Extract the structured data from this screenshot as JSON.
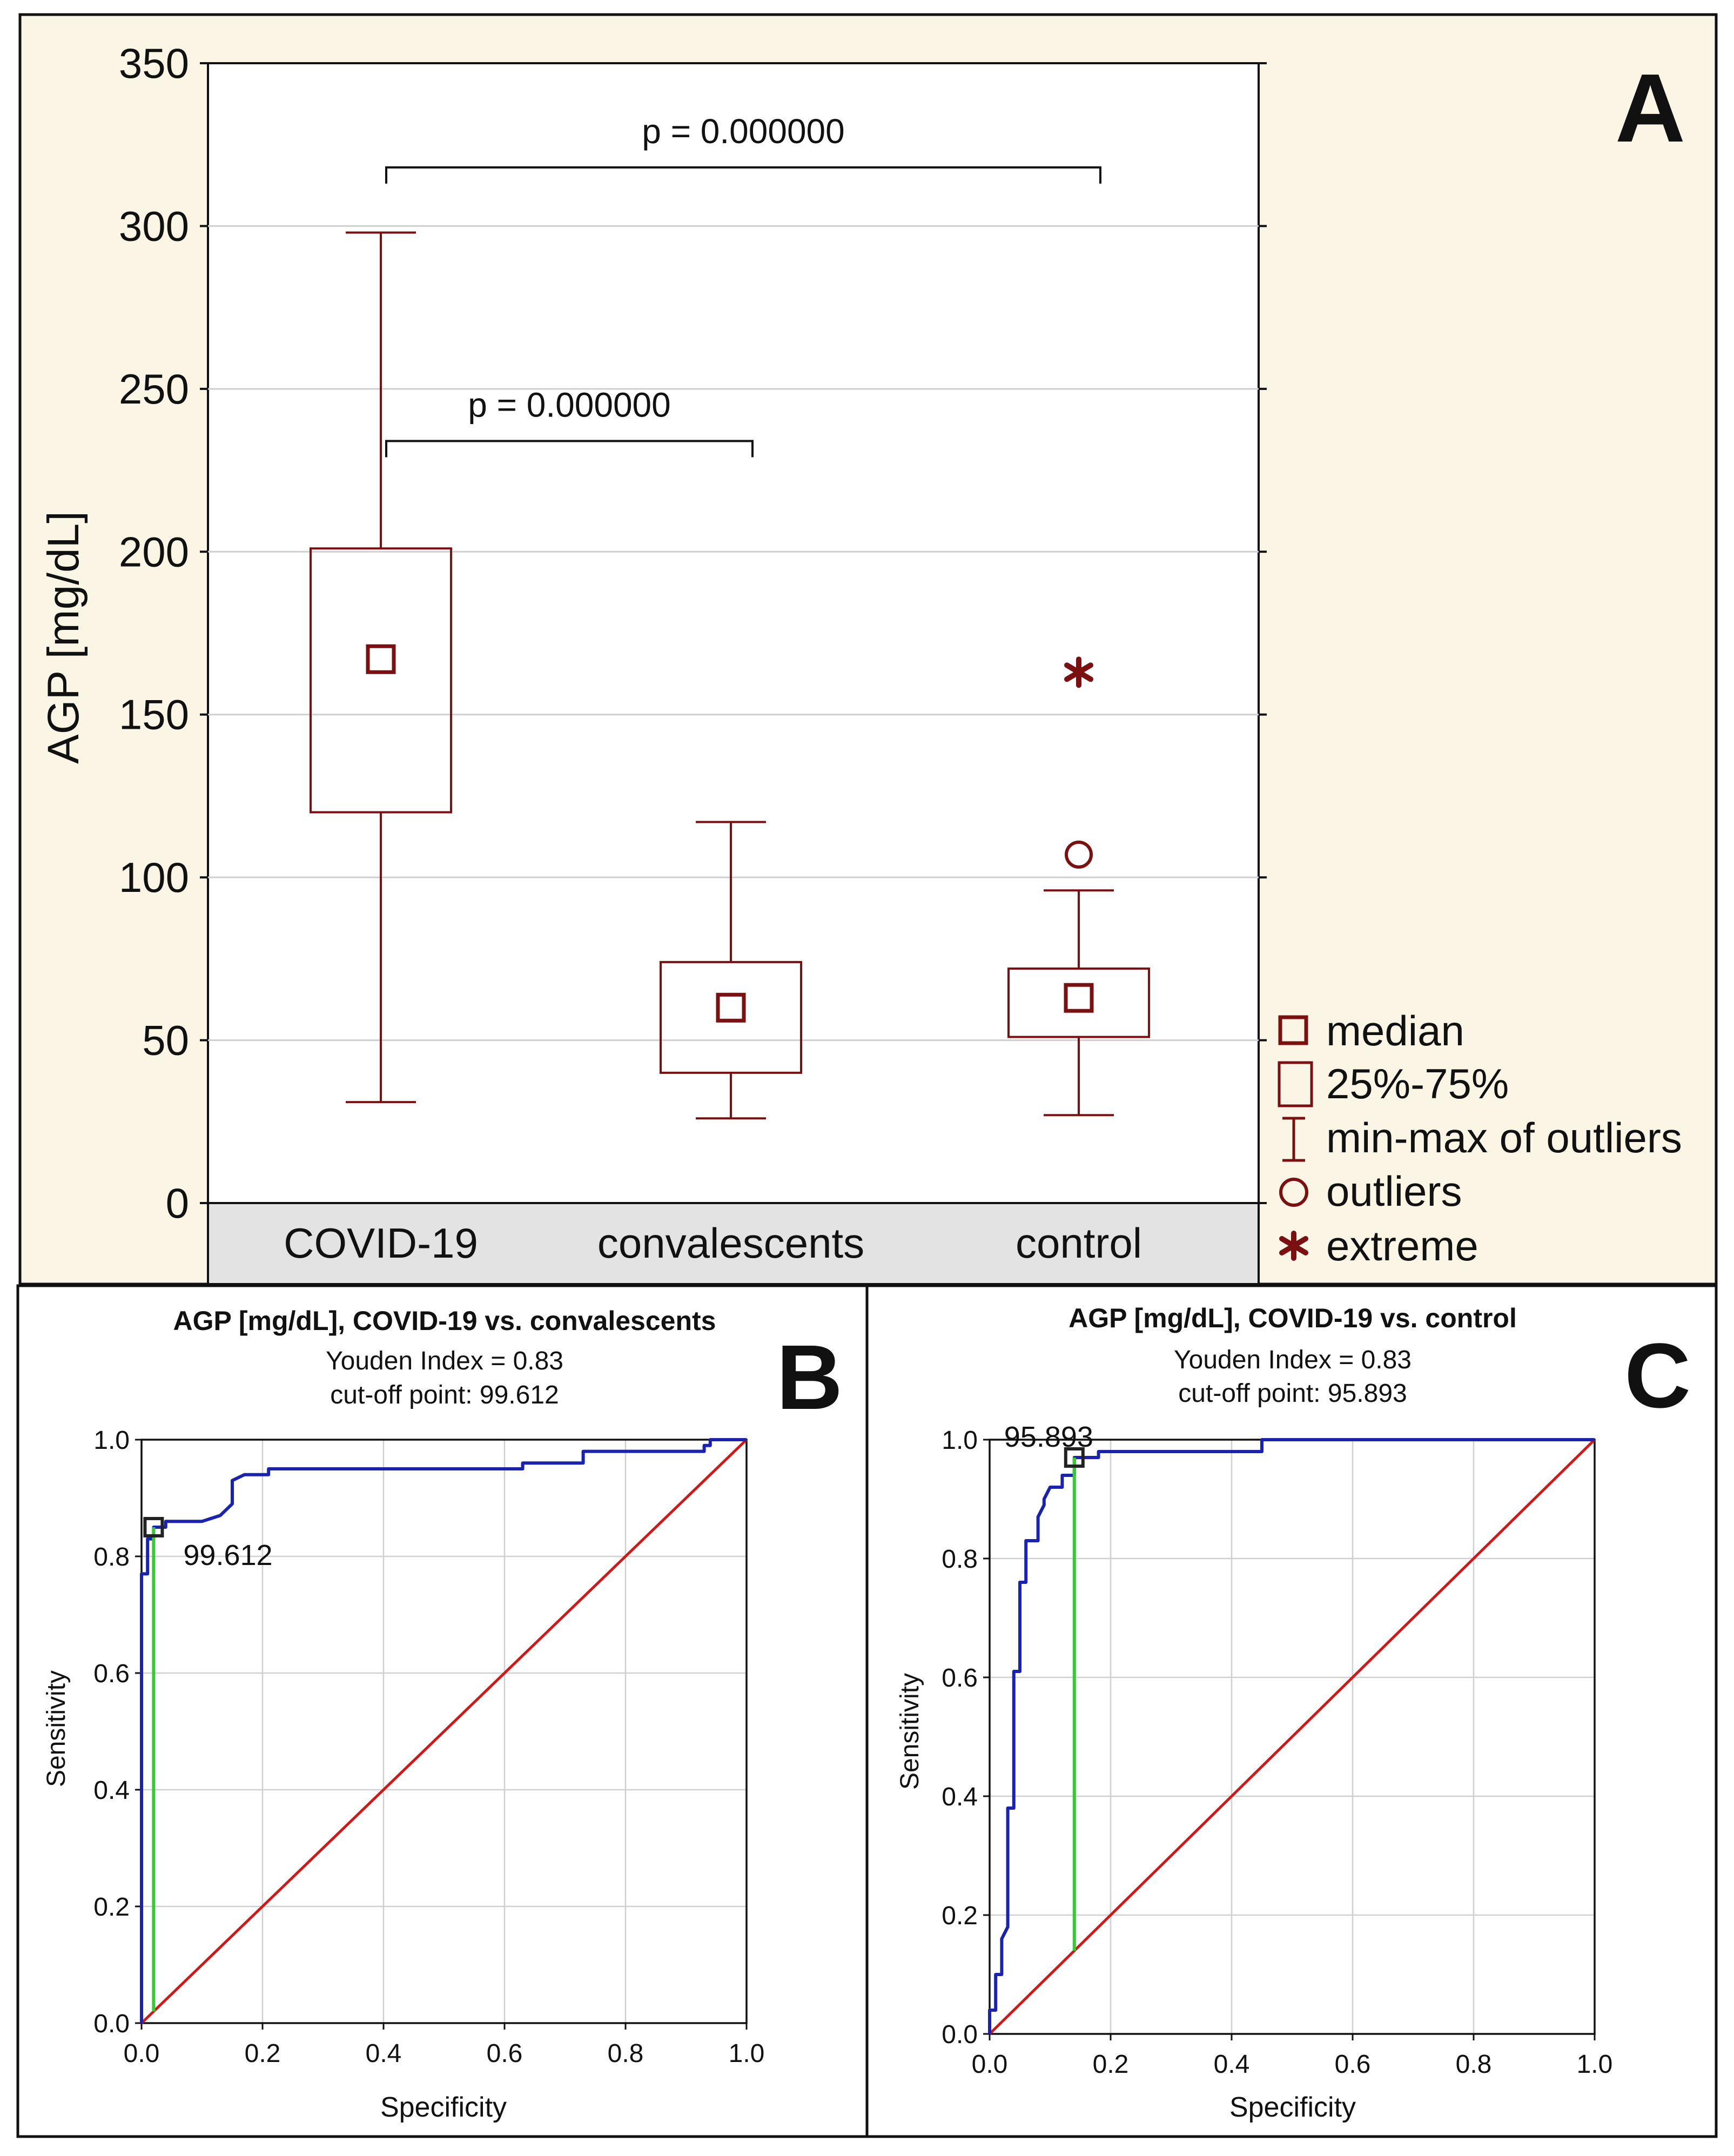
{
  "colors": {
    "panel_bg": "#fbf5e6",
    "box": "#7a1010",
    "grid": "#cfcfcf",
    "roc": "#1a22b0",
    "diag": "#d01818",
    "cutoff": "#33cc33",
    "cat_bg": "#e3e3e3"
  },
  "chart_data": [
    {
      "type": "box",
      "panel_letter": "A",
      "ylabel": "AGP [mg/dL]",
      "ylim": [
        0,
        350
      ],
      "yticks": [
        "0",
        "50",
        "100",
        "150",
        "200",
        "250",
        "300",
        "350"
      ],
      "categories": [
        "COVID-19",
        "convalescents",
        "control"
      ],
      "boxes": [
        {
          "name": "COVID-19",
          "min": 31,
          "q1": 120,
          "median": 167,
          "q3": 201,
          "max": 298,
          "outliers": [],
          "extremes": []
        },
        {
          "name": "convalescents",
          "min": 26,
          "q1": 40,
          "median": 60,
          "q3": 74,
          "max": 117,
          "outliers": [],
          "extremes": []
        },
        {
          "name": "control",
          "min": 27,
          "q1": 51,
          "median": 63,
          "q3": 72,
          "max": 96,
          "outliers": [
            107
          ],
          "extremes": [
            163
          ]
        }
      ],
      "comparisons": [
        {
          "label": "p = 0.000000",
          "from": "COVID-19",
          "to": "control",
          "level": 318
        },
        {
          "label": "p = 0.000000",
          "from": "COVID-19",
          "to": "convalescents",
          "level": 234
        }
      ],
      "legend": [
        "median",
        "25%-75%",
        "min-max of outliers",
        "outliers",
        "extreme"
      ]
    },
    {
      "type": "line",
      "panel_letter": "B",
      "title": "AGP [mg/dL], COVID-19 vs. convalescents",
      "youden": "Youden Index  = 0.83",
      "cutoff_text": "cut-off point: 99.612",
      "cutoff_label": "99.612",
      "xlabel": "Specificity",
      "ylabel": "Sensitivity",
      "xlim": [
        0,
        1
      ],
      "ylim": [
        0,
        1
      ],
      "xticks": [
        "0.0",
        "0.2",
        "0.4",
        "0.6",
        "0.8",
        "1.0"
      ],
      "yticks": [
        "0.0",
        "0.2",
        "0.4",
        "0.6",
        "0.8",
        "1.0"
      ],
      "cutoff_point": {
        "x": 0.02,
        "y": 0.85
      },
      "roc": [
        [
          0,
          0
        ],
        [
          0,
          0.77
        ],
        [
          0.01,
          0.77
        ],
        [
          0.01,
          0.83
        ],
        [
          0.02,
          0.83
        ],
        [
          0.02,
          0.85
        ],
        [
          0.04,
          0.85
        ],
        [
          0.04,
          0.86
        ],
        [
          0.1,
          0.86
        ],
        [
          0.13,
          0.87
        ],
        [
          0.15,
          0.89
        ],
        [
          0.15,
          0.93
        ],
        [
          0.17,
          0.94
        ],
        [
          0.21,
          0.94
        ],
        [
          0.21,
          0.95
        ],
        [
          0.63,
          0.95
        ],
        [
          0.63,
          0.96
        ],
        [
          0.73,
          0.96
        ],
        [
          0.73,
          0.98
        ],
        [
          0.93,
          0.98
        ],
        [
          0.93,
          0.99
        ],
        [
          0.94,
          0.99
        ],
        [
          0.94,
          1.0
        ],
        [
          1,
          1
        ]
      ]
    },
    {
      "type": "line",
      "panel_letter": "C",
      "title": "AGP [mg/dL], COVID-19 vs. control",
      "youden": "Youden Index  = 0.83",
      "cutoff_text": "cut-off point: 95.893",
      "cutoff_label": "95.893",
      "xlabel": "Specificity",
      "ylabel": "Sensitivity",
      "xlim": [
        0,
        1
      ],
      "ylim": [
        0,
        1
      ],
      "xticks": [
        "0.0",
        "0.2",
        "0.4",
        "0.6",
        "0.8",
        "1.0"
      ],
      "yticks": [
        "0.0",
        "0.2",
        "0.4",
        "0.6",
        "0.8",
        "1.0"
      ],
      "cutoff_point": {
        "x": 0.14,
        "y": 0.97
      },
      "roc": [
        [
          0,
          0
        ],
        [
          0,
          0.04
        ],
        [
          0.01,
          0.04
        ],
        [
          0.01,
          0.1
        ],
        [
          0.02,
          0.1
        ],
        [
          0.02,
          0.16
        ],
        [
          0.03,
          0.18
        ],
        [
          0.03,
          0.38
        ],
        [
          0.04,
          0.38
        ],
        [
          0.04,
          0.61
        ],
        [
          0.05,
          0.61
        ],
        [
          0.05,
          0.76
        ],
        [
          0.06,
          0.76
        ],
        [
          0.06,
          0.83
        ],
        [
          0.08,
          0.83
        ],
        [
          0.08,
          0.87
        ],
        [
          0.09,
          0.89
        ],
        [
          0.09,
          0.9
        ],
        [
          0.1,
          0.92
        ],
        [
          0.12,
          0.92
        ],
        [
          0.12,
          0.94
        ],
        [
          0.14,
          0.94
        ],
        [
          0.14,
          0.97
        ],
        [
          0.18,
          0.97
        ],
        [
          0.18,
          0.98
        ],
        [
          0.45,
          0.98
        ],
        [
          0.45,
          1.0
        ],
        [
          1,
          1
        ]
      ]
    }
  ]
}
